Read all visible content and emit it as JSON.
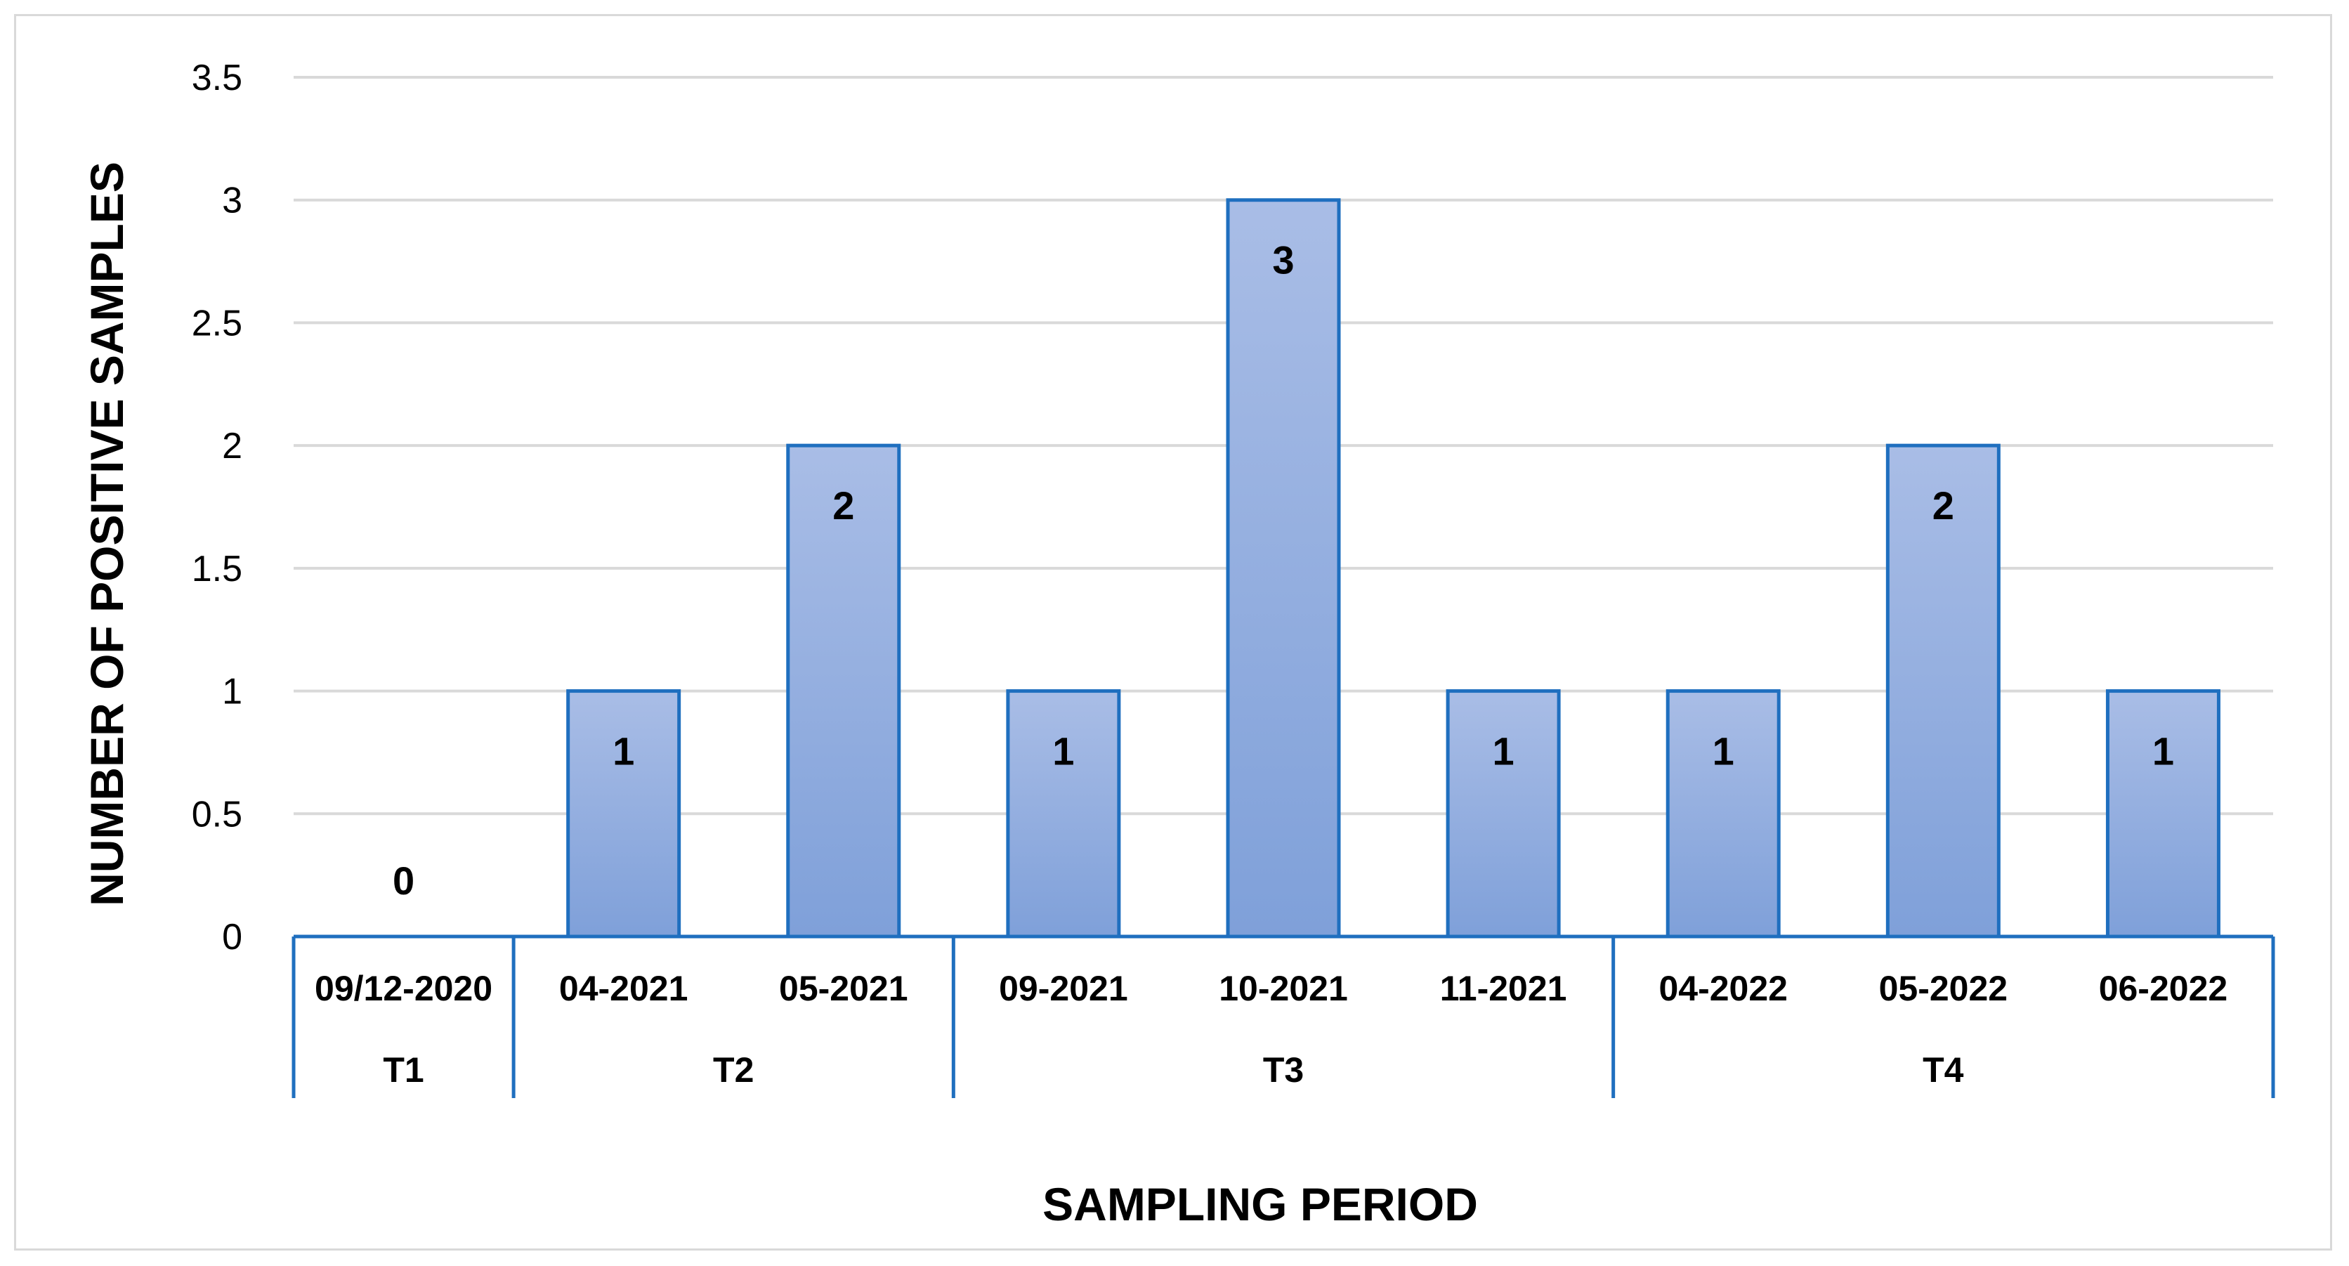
{
  "chart_data": {
    "type": "bar",
    "title": "",
    "xlabel": "SAMPLING PERIOD",
    "ylabel": "NUMBER OF POSITIVE SAMPLES",
    "ylim": [
      0,
      3.5
    ],
    "yticks": [
      "0",
      "0.5",
      "1",
      "1.5",
      "2",
      "2.5",
      "3",
      "3.5"
    ],
    "grid": true,
    "legend": "none",
    "categories": [
      "09/12-2020",
      "04-2021",
      "05-2021",
      "09-2021",
      "10-2021",
      "11-2021",
      "04-2022",
      "05-2022",
      "06-2022"
    ],
    "values": [
      0,
      1,
      2,
      1,
      3,
      1,
      1,
      2,
      1
    ],
    "data_labels": [
      "0",
      "1",
      "2",
      "1",
      "3",
      "1",
      "1",
      "2",
      "1"
    ],
    "groups": [
      {
        "name": "T1",
        "count": 1
      },
      {
        "name": "T2",
        "count": 2
      },
      {
        "name": "T3",
        "count": 3
      },
      {
        "name": "T4",
        "count": 3
      }
    ],
    "colors": {
      "bar_top": "#a9bde6",
      "bar_bottom": "#7fa0d9",
      "bar_stroke": "#1f6fbf",
      "grid": "#d9d9d9",
      "axis": "#1f6fbf"
    }
  }
}
